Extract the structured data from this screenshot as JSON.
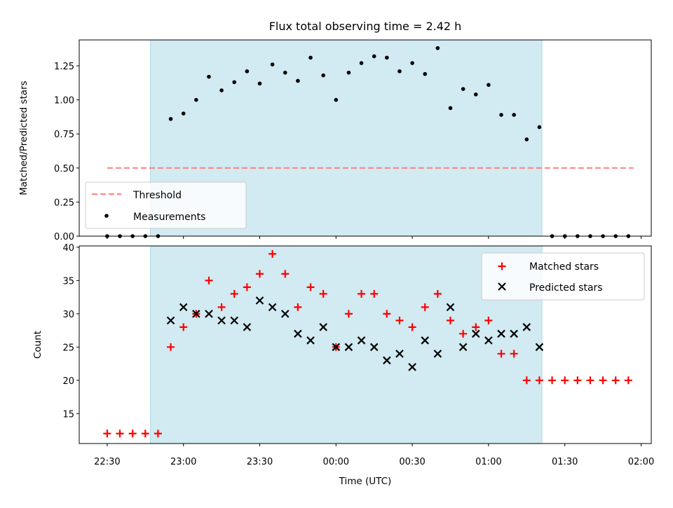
{
  "title": "Flux total observing time = 2.42 h",
  "colors": {
    "shade": "#add8e6",
    "threshold": "#ff7f7f",
    "measurement": "#000000",
    "matched": "#ff0000",
    "predicted": "#000000"
  },
  "chart_data": [
    {
      "type": "scatter",
      "ylabel": "Matched/Predicted stars",
      "xlabel": "",
      "ylim": [
        0,
        1.44
      ],
      "xlim": [
        "22:19",
        "02:04"
      ],
      "yticks": [
        "0.00",
        "0.25",
        "0.50",
        "0.75",
        "1.00",
        "1.25"
      ],
      "shaded_interval": [
        "22:47",
        "01:21"
      ],
      "threshold": {
        "name": "Threshold",
        "value": 0.5,
        "x_range": [
          "22:30",
          "01:57"
        ],
        "style": "dashed"
      },
      "legend": {
        "position": "lower-left",
        "entries": [
          "Threshold",
          "Measurements"
        ]
      },
      "series": [
        {
          "name": "Measurements",
          "x": [
            "22:30",
            "22:35",
            "22:40",
            "22:45",
            "22:50",
            "22:55",
            "23:00",
            "23:05",
            "23:10",
            "23:15",
            "23:20",
            "23:25",
            "23:30",
            "23:35",
            "23:40",
            "23:45",
            "23:50",
            "23:55",
            "00:00",
            "00:05",
            "00:10",
            "00:15",
            "00:20",
            "00:25",
            "00:30",
            "00:35",
            "00:40",
            "00:45",
            "00:50",
            "00:55",
            "01:00",
            "01:05",
            "01:10",
            "01:15",
            "01:20",
            "01:25",
            "01:30",
            "01:35",
            "01:40",
            "01:45",
            "01:50",
            "01:55"
          ],
          "y": [
            0,
            0,
            0,
            0,
            0,
            0.86,
            0.9,
            1.0,
            1.17,
            1.07,
            1.13,
            1.21,
            1.12,
            1.26,
            1.2,
            1.14,
            1.31,
            1.18,
            1.0,
            1.2,
            1.27,
            1.32,
            1.31,
            1.21,
            1.27,
            1.19,
            1.38,
            0.94,
            1.08,
            1.04,
            1.11,
            0.89,
            0.89,
            0.71,
            0.8,
            0,
            0,
            0,
            0,
            0,
            0,
            0
          ]
        }
      ]
    },
    {
      "type": "scatter",
      "xlabel": "Time (UTC)",
      "ylabel": "Count",
      "ylim": [
        10.5,
        40.2
      ],
      "yticks": [
        "15",
        "20",
        "25",
        "30",
        "35",
        "40"
      ],
      "xticks": [
        "22:30",
        "23:00",
        "23:30",
        "00:00",
        "00:30",
        "01:00",
        "01:30",
        "02:00"
      ],
      "legend": {
        "position": "top-right",
        "entries": [
          "Matched stars",
          "Predicted stars"
        ]
      },
      "series": [
        {
          "name": "Matched stars",
          "marker": "plus",
          "x": [
            "22:30",
            "22:35",
            "22:40",
            "22:45",
            "22:50",
            "22:55",
            "23:00",
            "23:05",
            "23:10",
            "23:15",
            "23:20",
            "23:25",
            "23:30",
            "23:35",
            "23:40",
            "23:45",
            "23:50",
            "23:55",
            "00:00",
            "00:05",
            "00:10",
            "00:15",
            "00:20",
            "00:25",
            "00:30",
            "00:35",
            "00:40",
            "00:45",
            "00:50",
            "00:55",
            "01:00",
            "01:05",
            "01:10",
            "01:15",
            "01:20",
            "01:25",
            "01:30",
            "01:35",
            "01:40",
            "01:45",
            "01:50",
            "01:55"
          ],
          "y": [
            12,
            12,
            12,
            12,
            12,
            25,
            28,
            30,
            35,
            31,
            33,
            34,
            36,
            39,
            36,
            31,
            34,
            33,
            25,
            30,
            33,
            33,
            30,
            29,
            28,
            31,
            33,
            29,
            27,
            28,
            29,
            24,
            24,
            20,
            20,
            20,
            20,
            20,
            20,
            20,
            20,
            20
          ]
        },
        {
          "name": "Predicted stars",
          "marker": "x",
          "x": [
            "22:55",
            "23:00",
            "23:05",
            "23:10",
            "23:15",
            "23:20",
            "23:25",
            "23:30",
            "23:35",
            "23:40",
            "23:45",
            "23:50",
            "23:55",
            "00:00",
            "00:05",
            "00:10",
            "00:15",
            "00:20",
            "00:25",
            "00:30",
            "00:35",
            "00:40",
            "00:45",
            "00:50",
            "00:55",
            "01:00",
            "01:05",
            "01:10",
            "01:15",
            "01:20"
          ],
          "y": [
            29,
            31,
            30,
            30,
            29,
            29,
            28,
            32,
            31,
            30,
            27,
            26,
            28,
            25,
            25,
            26,
            25,
            23,
            24,
            22,
            26,
            24,
            31,
            25,
            27,
            26,
            27,
            27,
            28,
            25
          ]
        }
      ]
    }
  ]
}
